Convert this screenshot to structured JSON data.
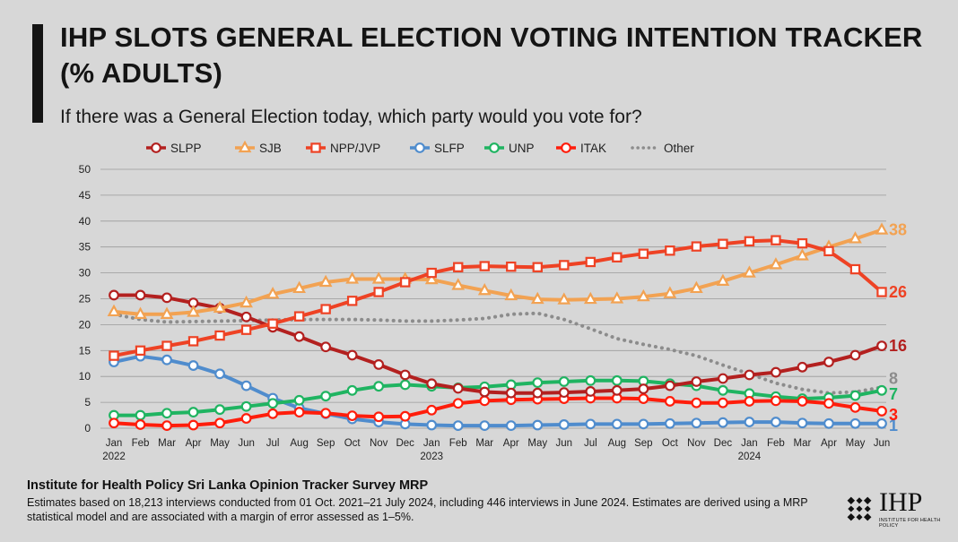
{
  "title": "IHP SLOTS GENERAL ELECTION VOTING INTENTION TRACKER (% ADULTS)",
  "subtitle": "If there was a General Election today, which party would you vote for?",
  "footer": {
    "source": "Institute for Health Policy Sri Lanka Opinion Tracker Survey MRP",
    "note": "Estimates based on 18,213 interviews conducted from 01 Oct. 2021–21 July 2024, including 446 interviews in June 2024. Estimates are derived using a MRP statistical model and are associated with a margin of error assessed as 1–5%."
  },
  "logo": {
    "text": "IHP",
    "subtext": "INSTITUTE FOR HEALTH POLICY"
  },
  "chart_data": {
    "type": "line",
    "ylim": [
      0,
      50
    ],
    "yticks": [
      0,
      5,
      10,
      15,
      20,
      25,
      30,
      35,
      40,
      45,
      50
    ],
    "grid": true,
    "legend": "top",
    "categories": [
      "Jan",
      "Feb",
      "Mar",
      "Apr",
      "May",
      "Jun",
      "Jul",
      "Aug",
      "Sep",
      "Oct",
      "Nov",
      "Dec",
      "Jan",
      "Feb",
      "Mar",
      "Apr",
      "May",
      "Jun",
      "Jul",
      "Aug",
      "Sep",
      "Oct",
      "Nov",
      "Dec",
      "Jan",
      "Feb",
      "Mar",
      "Apr",
      "May",
      "Jun"
    ],
    "year_labels": [
      {
        "index": 0,
        "label": "2022"
      },
      {
        "index": 12,
        "label": "2023"
      },
      {
        "index": 24,
        "label": "2024"
      }
    ],
    "series": [
      {
        "name": "SLPP",
        "color": "#b3201f",
        "marker": "circle",
        "values": [
          25.7,
          25.7,
          25.2,
          24.2,
          23.2,
          21.5,
          19.5,
          17.7,
          15.7,
          14.1,
          12.3,
          10.3,
          8.6,
          7.7,
          7.0,
          6.8,
          6.8,
          6.9,
          7.1,
          7.3,
          7.6,
          8.2,
          9.0,
          9.6,
          10.3,
          10.8,
          11.8,
          12.8,
          14.1,
          15.9
        ],
        "end_label": "16"
      },
      {
        "name": "SJB",
        "color": "#f2a252",
        "marker": "triangle",
        "values": [
          22.5,
          22.0,
          22.0,
          22.4,
          23.2,
          24.2,
          25.9,
          27.0,
          28.2,
          28.8,
          28.8,
          28.8,
          28.7,
          27.6,
          26.6,
          25.6,
          24.9,
          24.8,
          24.9,
          25.0,
          25.4,
          26.0,
          27.0,
          28.4,
          30.0,
          31.6,
          33.3,
          35.0,
          36.6,
          38.3
        ],
        "end_label": "38"
      },
      {
        "name": "NPP/JVP",
        "color": "#ee4224",
        "marker": "square",
        "values": [
          14.0,
          15.0,
          15.9,
          16.8,
          17.9,
          19.0,
          20.2,
          21.6,
          23.0,
          24.6,
          26.3,
          28.2,
          30.0,
          31.1,
          31.3,
          31.2,
          31.1,
          31.5,
          32.1,
          33.0,
          33.7,
          34.3,
          35.1,
          35.6,
          36.1,
          36.3,
          35.7,
          34.2,
          30.7,
          26.3
        ],
        "end_label": "26"
      },
      {
        "name": "SLFP",
        "color": "#4f8ccd",
        "marker": "circle",
        "values": [
          12.8,
          13.9,
          13.2,
          12.1,
          10.5,
          8.2,
          5.8,
          3.9,
          2.8,
          1.8,
          1.2,
          0.8,
          0.6,
          0.5,
          0.5,
          0.5,
          0.6,
          0.7,
          0.8,
          0.8,
          0.8,
          0.9,
          1.0,
          1.1,
          1.2,
          1.2,
          1.0,
          0.9,
          0.9,
          0.9
        ],
        "end_label": "1"
      },
      {
        "name": "UNP",
        "color": "#1fb461",
        "marker": "circle",
        "values": [
          2.5,
          2.5,
          2.9,
          3.1,
          3.6,
          4.2,
          4.8,
          5.4,
          6.2,
          7.3,
          8.1,
          8.4,
          8.1,
          7.8,
          8.0,
          8.4,
          8.8,
          9.0,
          9.2,
          9.2,
          9.1,
          8.6,
          8.2,
          7.3,
          6.7,
          6.1,
          5.7,
          5.9,
          6.3,
          7.3
        ],
        "end_label": "7"
      },
      {
        "name": "ITAK",
        "color": "#ff1d0b",
        "marker": "circle",
        "values": [
          1.0,
          0.7,
          0.5,
          0.6,
          1.0,
          1.9,
          2.8,
          3.1,
          2.9,
          2.4,
          2.2,
          2.3,
          3.5,
          4.8,
          5.3,
          5.5,
          5.6,
          5.7,
          5.8,
          5.8,
          5.7,
          5.2,
          4.9,
          4.9,
          5.2,
          5.3,
          5.2,
          4.8,
          4.0,
          3.3
        ],
        "end_label": "3"
      },
      {
        "name": "Other",
        "color": "#8c8c8c",
        "marker": "none",
        "dotted": true,
        "values": [
          22.0,
          21.0,
          20.5,
          20.6,
          20.7,
          20.8,
          20.9,
          21.0,
          21.0,
          21.0,
          20.9,
          20.7,
          20.7,
          20.9,
          21.2,
          22.0,
          22.2,
          21.0,
          19.2,
          17.3,
          16.2,
          15.2,
          14.0,
          12.2,
          10.5,
          8.7,
          7.5,
          6.8,
          7.0,
          7.9
        ],
        "end_label": "8"
      }
    ]
  }
}
